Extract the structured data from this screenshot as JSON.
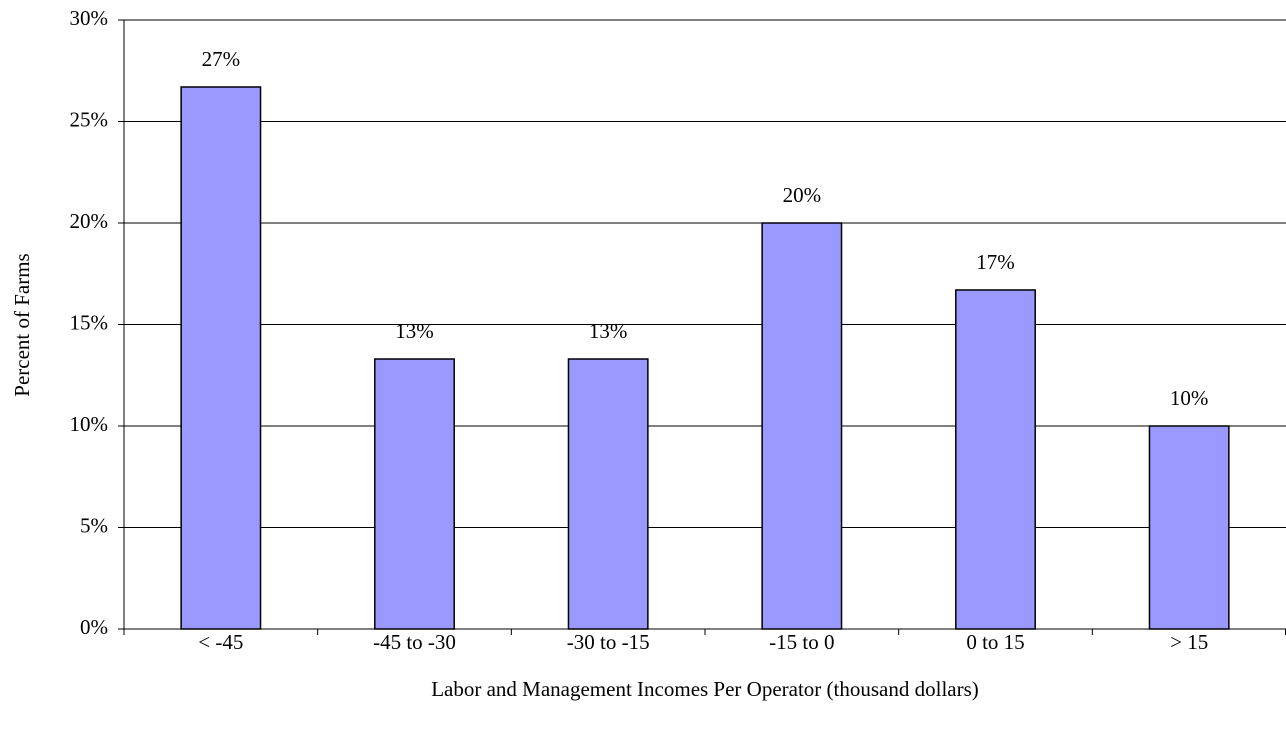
{
  "chart_data": {
    "type": "bar",
    "x_label": "Labor and Management Incomes Per Operator (thousand dollars)",
    "y_label": "Percent of Farms",
    "categories": [
      "< -45",
      "-45 to -30",
      "-30 to -15",
      "-15 to 0",
      "0 to 15",
      "> 15"
    ],
    "values": [
      26.7,
      13.3,
      13.3,
      20,
      16.7,
      10
    ],
    "value_labels": [
      "27%",
      "13%",
      "13%",
      "20%",
      "17%",
      "10%"
    ],
    "color": "#9999ff",
    "ylim": [
      0,
      30
    ],
    "yticks": [
      {
        "value": 0,
        "label": "0%"
      },
      {
        "value": 5,
        "label": "5%"
      },
      {
        "value": 10,
        "label": "10%"
      },
      {
        "value": 15,
        "label": "15%"
      },
      {
        "value": 20,
        "label": "20%"
      },
      {
        "value": 25,
        "label": "25%"
      },
      {
        "value": 30,
        "label": "30%"
      }
    ],
    "grid": true
  }
}
